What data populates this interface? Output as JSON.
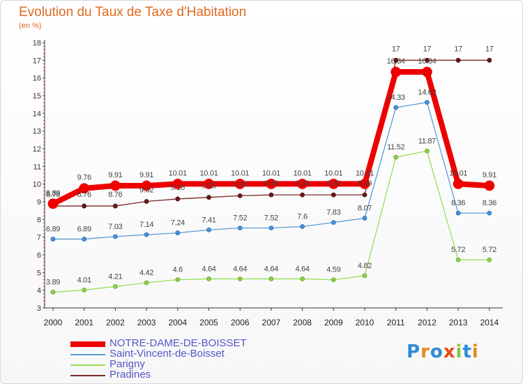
{
  "title": "Evolution du Taux de Taxe d'Habitation",
  "subtitle": "(en %)",
  "logo_text": "Proxiti",
  "chart_data": {
    "type": "line",
    "title": "Evolution du Taux de Taxe d'Habitation",
    "ylabel": "(en %)",
    "xlabel": "",
    "x": [
      "2000",
      "2001",
      "2002",
      "2003",
      "2004",
      "2005",
      "2006",
      "2007",
      "2008",
      "2009",
      "2010",
      "2011",
      "2012",
      "2013",
      "2014"
    ],
    "ylim": [
      3,
      18
    ],
    "yticks": [
      "3",
      "4",
      "5",
      "6",
      "7",
      "8",
      "9",
      "10",
      "11",
      "12",
      "13",
      "14",
      "15",
      "16",
      "17",
      "18"
    ],
    "grid": false,
    "legend_position": "bottom-left",
    "series": [
      {
        "name": "NOTRE-DAME-DE-BOISSET",
        "color": "#ee0000",
        "values": [
          8.89,
          9.76,
          9.91,
          9.91,
          10.01,
          10.01,
          10.01,
          10.01,
          10.01,
          10.01,
          10.01,
          16.34,
          16.34,
          10.01,
          9.91
        ],
        "labels": [
          "8.89",
          "9.76",
          "9.91",
          "9.91",
          "10.01",
          "10.01",
          "10.01",
          "10.01",
          "10.01",
          "10.01",
          "10.01",
          "16.34",
          "16.34",
          "10.01",
          "9.91"
        ]
      },
      {
        "name": "Saint-Vincent-de-Boisset",
        "color": "#5b9bd5",
        "values": [
          6.89,
          6.89,
          7.03,
          7.14,
          7.24,
          7.41,
          7.52,
          7.52,
          7.6,
          7.83,
          8.07,
          14.33,
          14.62,
          8.36,
          8.36
        ],
        "labels": [
          "6.89",
          "6.89",
          "7.03",
          "7.14",
          "7.24",
          "7.41",
          "7.52",
          "7.52",
          "7.6",
          "7.83",
          "8.07",
          "14.33",
          "14.62",
          "8.36",
          "8.36"
        ]
      },
      {
        "name": "Parigny",
        "color": "#99dd55",
        "values": [
          3.89,
          4.01,
          4.21,
          4.42,
          4.6,
          4.64,
          4.64,
          4.64,
          4.64,
          4.59,
          4.82,
          11.52,
          11.87,
          5.72,
          5.72
        ],
        "labels": [
          "3.89",
          "4.01",
          "4.21",
          "4.42",
          "4.6",
          "4.64",
          "4.64",
          "4.64",
          "4.64",
          "4.59",
          "4.82",
          "11.52",
          "11.87",
          "5.72",
          "5.72"
        ]
      },
      {
        "name": "Pradines",
        "color": "#7a2a2a",
        "values": [
          8.76,
          8.76,
          8.76,
          9.02,
          9.16,
          9.25,
          9.34,
          9.39,
          9.39,
          9.39,
          9.39,
          17,
          17,
          17,
          17
        ],
        "labels": [
          "8.76",
          "8.76",
          "8.76",
          "9.02",
          "9.16",
          "9.25",
          "9.34",
          "9.39",
          "9.39",
          "9.39",
          "9.39",
          "17",
          "17",
          "17",
          "17"
        ]
      }
    ]
  }
}
